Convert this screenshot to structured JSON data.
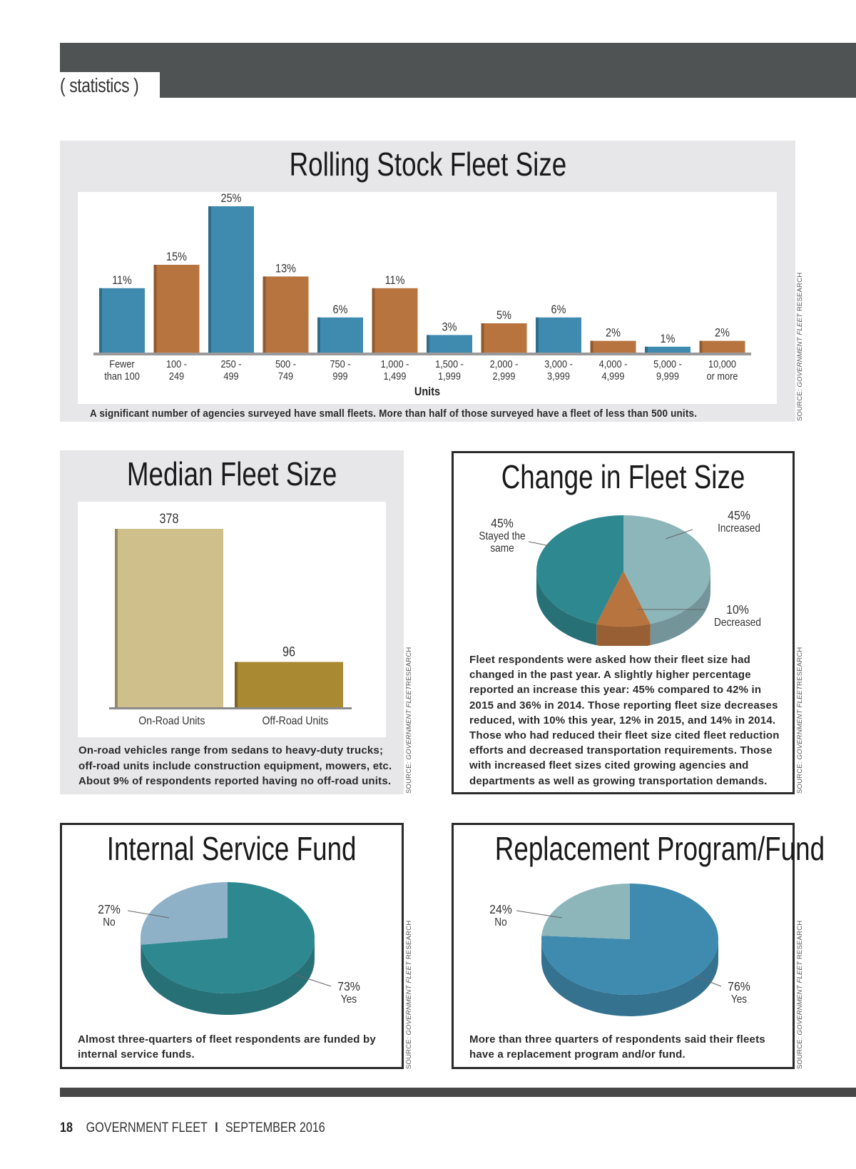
{
  "header": {
    "section_label": "( statistics )"
  },
  "colors": {
    "blue": "#3f8bb0",
    "orange": "#b8743e",
    "teal": "#2e8890",
    "light_teal": "#8cb6ba",
    "light_blue": "#8fb1c8",
    "tan": "#cfbf8a",
    "olive": "#a98a33",
    "header_gray": "#505354",
    "panel_gray": "#e7e7e9"
  },
  "chart_data": [
    {
      "id": "rolling-stock",
      "type": "bar",
      "title": "Rolling Stock Fleet Size",
      "xlabel": "Units",
      "ylabel": "",
      "ylim": [
        0,
        25
      ],
      "grid": false,
      "categories": [
        [
          "Fewer",
          "than 100"
        ],
        [
          "100 -",
          "249"
        ],
        [
          "250 -",
          "499"
        ],
        [
          "500 -",
          "749"
        ],
        [
          "750 -",
          "999"
        ],
        [
          "1,000 -",
          "1,499"
        ],
        [
          "1,500 -",
          "1,999"
        ],
        [
          "2,000 -",
          "2,999"
        ],
        [
          "3,000 -",
          "3,999"
        ],
        [
          "4,000 -",
          "4,999"
        ],
        [
          "5,000 -",
          "9,999"
        ],
        [
          "10,000",
          "or more"
        ]
      ],
      "values": [
        11,
        15,
        25,
        13,
        6,
        11,
        3,
        5,
        6,
        2,
        1,
        2
      ],
      "data_labels": [
        "11%",
        "15%",
        "25%",
        "13%",
        "6%",
        "11%",
        "3%",
        "5%",
        "6%",
        "2%",
        "1%",
        "2%"
      ],
      "caption": "A significant number of agencies surveyed have small fleets. More than half of those surveyed have a fleet of less than 500 units.",
      "source": [
        "SOURCE: ",
        "GOVERNMENT FLEET",
        " RESEARCH"
      ]
    },
    {
      "id": "median-fleet",
      "type": "bar",
      "title": "Median Fleet Size",
      "categories": [
        "On-Road Units",
        "Off-Road Units"
      ],
      "values": [
        378,
        96
      ],
      "data_labels": [
        "378",
        "96"
      ],
      "ylim": [
        0,
        378
      ],
      "caption": "On-road vehicles range from sedans to heavy-duty trucks; off-road units include construction equipment, mowers, etc. About 9% of respondents reported having no off-road units.",
      "source": [
        "SOURCE: ",
        "GOVERNMENT FLEET",
        "RESEARCH"
      ]
    },
    {
      "id": "change-fleet",
      "type": "pie",
      "title": "Change in Fleet Size",
      "slices": [
        {
          "label": "Increased",
          "value": 45,
          "display": "45%"
        },
        {
          "label": "Decreased",
          "value": 10,
          "display": "10%"
        },
        {
          "label": "Stayed the same",
          "value": 45,
          "display": "45%"
        }
      ],
      "caption": "Fleet respondents were asked how their fleet size had changed in the past year. A slightly higher percentage reported an increase this year: 45% compared to 42% in 2015 and 36% in 2014. Those reporting fleet size decreases reduced, with 10% this year, 12% in 2015, and 14% in 2014. Those who had reduced their fleet size cited fleet reduction efforts and decreased transportation requirements. Those with increased fleet sizes cited growing agencies and departments as well as growing transportation demands.",
      "source": [
        "SOURCE: ",
        "GOVERNMENT FLEET",
        "RESEARCH"
      ]
    },
    {
      "id": "internal-service",
      "type": "pie",
      "title": "Internal Service Fund",
      "slices": [
        {
          "label": "Yes",
          "value": 73,
          "display": "73%"
        },
        {
          "label": "No",
          "value": 27,
          "display": "27%"
        }
      ],
      "caption": "Almost three-quarters of fleet respondents are funded by internal service funds.",
      "source": [
        "SOURCE: ",
        "GOVERNMENT FLEET",
        " RESEARCH"
      ]
    },
    {
      "id": "replacement",
      "type": "pie",
      "title": "Replacement Program/Fund",
      "slices": [
        {
          "label": "Yes",
          "value": 76,
          "display": "76%"
        },
        {
          "label": "No",
          "value": 24,
          "display": "24%"
        }
      ],
      "caption": "More than three quarters of respondents said their fleets have a replacement program and/or fund.",
      "source": [
        "SOURCE: ",
        "GOVERNMENT FLEET",
        " RESEARCH"
      ]
    }
  ],
  "footer": {
    "page_number": "18",
    "publication": "GOVERNMENT FLEET",
    "separator": "I",
    "issue": "SEPTEMBER 2016"
  }
}
